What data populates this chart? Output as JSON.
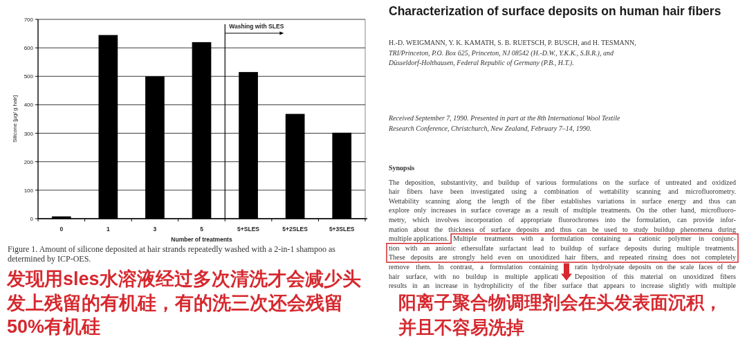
{
  "chart_data": [
    {
      "type": "bar",
      "categories": [
        "0",
        "1",
        "3",
        "5",
        "5+SLES",
        "5+2SLES",
        "5+3SLES"
      ],
      "values": [
        8,
        645,
        500,
        620,
        515,
        368,
        302
      ],
      "color": "#000000",
      "ylim": [
        0,
        700
      ],
      "yticks": [
        0,
        100,
        200,
        300,
        400,
        500,
        600,
        700
      ],
      "ylabel": "Silicone [µg/ g hair]",
      "xlabel": "Number of treatments",
      "grid": "y",
      "ref_lines": [
        {
          "axis": "x",
          "value": "5+SLES",
          "label": "Washing with SLES"
        }
      ],
      "annotations": [
        "Figure 1. Amount of silicone deposited at hair strands repeatedly washed with a 2-in-1 shampoo as determined by ICP-OES.",
        "发现用sles水溶液经过多次清洗才会减少头发上残留的有机硅，有的洗三次还会残留50%有机硅"
      ]
    },
    {
      "type": "other",
      "title": "Characterization of surface deposits on human hair fibers",
      "annotations": [
        "H.-D. WEIGMANN, Y. K. KAMATH, S. B. RUETSCH, P. BUSCH, and H. TESMANN,",
        "TRI/Princeton, P.O. Box 625, Princeton, NJ 08542 (H.-D.W., Y.K.K., S.B.R.), and Düsseldorf-Holthausen, Federal Republic of Germany (P.B., H.T.).",
        "Received September 7, 1990. Presented in part at the 8th International Wool Textile Research Conference, Christchurch, New Zealand, February 7–14, 1990.",
        "Synopsis",
        "The deposition, substantivity, and buildup of various formulations on the surface of untreated and oxidized",
        "hair fibers have been investigated using a combination of wettability scanning and microfluorometry.",
        "Wettability scanning along the length of the fiber establishes variations in surface energy and thus can",
        "explore only increases in surface coverage as a result of multiple treatments. On the other hand, microfluoro-",
        "metry, which involves incorporation of appropriate fluorochromes into the formulation, can provide infor-",
        "mation about the thickness of surface deposits and thus can be used to study buildup phenomena during",
        "multiple applications.",
        "Multiple treatments with a formulation containing a cationic polymer in conjunc-",
        "tion with an anionic ethersulfate surfactant lead to buildup of surface deposits during multiple treatments.",
        "These deposits are strongly held even on unoxidized hair fibers, and repeated rinsing does not completely",
        "remove them. In contrast, a formulation containing",
        "ratin hydrolysate deposits on the scale faces of the",
        "hair surface, with no buildup in multiple applicati",
        "Deposition of this material on unoxidized fibers",
        "results in an increase in hydrophilicity of the fiber surface that appears to increase slightly with multiple",
        "阳离子聚合物调理剂会在头发表面沉积，并且不容易洗掉"
      ]
    }
  ]
}
